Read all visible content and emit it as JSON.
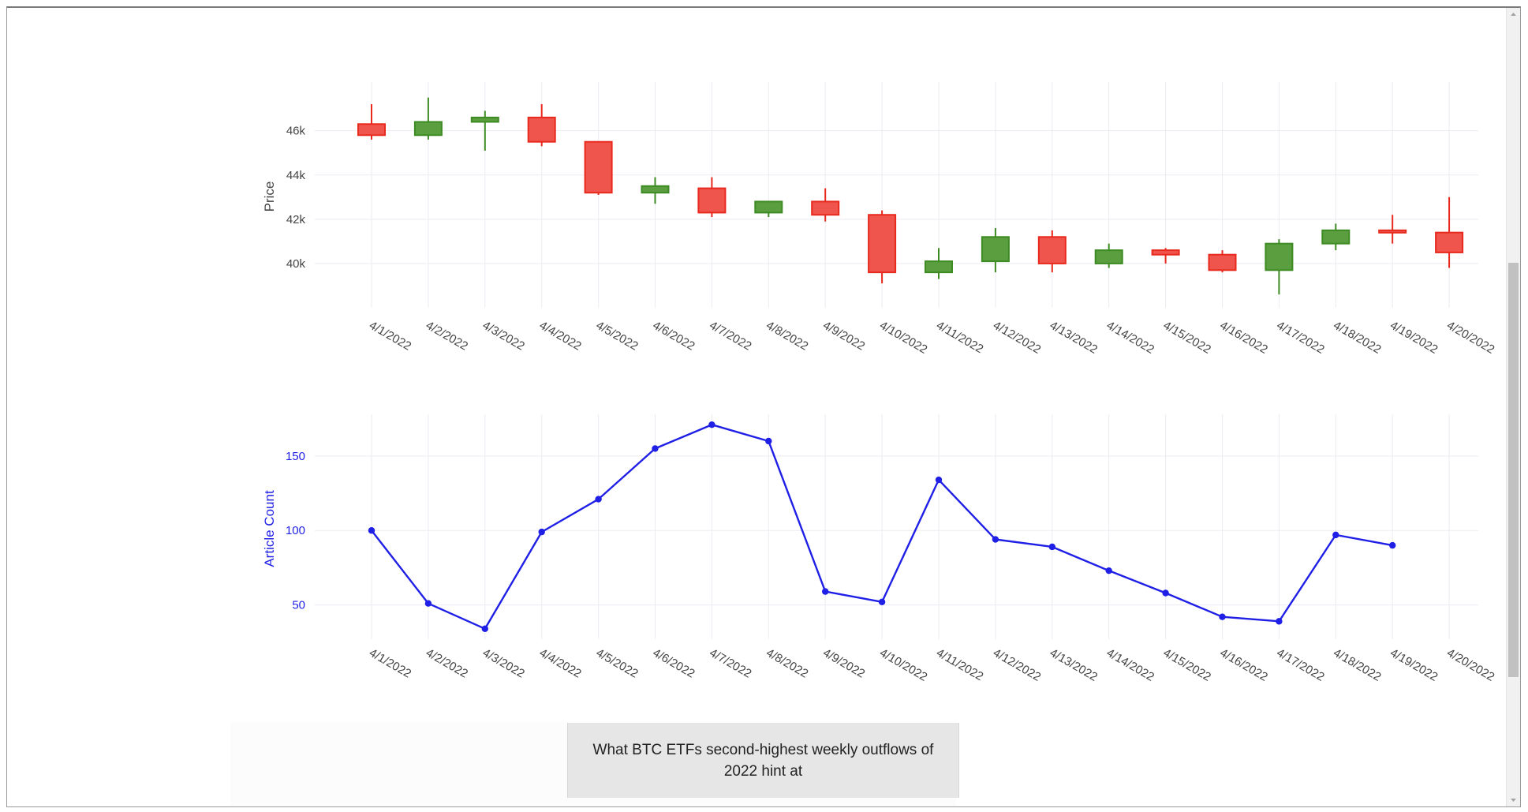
{
  "chart_data": [
    {
      "type": "candlestick",
      "ylabel": "Price",
      "ylim": [
        38000,
        48200
      ],
      "yticks": [
        {
          "v": 40000,
          "label": "40k"
        },
        {
          "v": 42000,
          "label": "42k"
        },
        {
          "v": 44000,
          "label": "44k"
        },
        {
          "v": 46000,
          "label": "46k"
        }
      ],
      "categories": [
        "4/1/2022",
        "4/2/2022",
        "4/3/2022",
        "4/4/2022",
        "4/5/2022",
        "4/6/2022",
        "4/7/2022",
        "4/8/2022",
        "4/9/2022",
        "4/10/2022",
        "4/11/2022",
        "4/12/2022",
        "4/13/2022",
        "4/14/2022",
        "4/15/2022",
        "4/16/2022",
        "4/17/2022",
        "4/18/2022",
        "4/19/2022",
        "4/20/2022"
      ],
      "open": [
        46300,
        45800,
        46400,
        46600,
        45500,
        43200,
        43400,
        42300,
        42800,
        42200,
        39600,
        40100,
        41200,
        40000,
        40600,
        40400,
        39700,
        40900,
        41500,
        41400
      ],
      "high": [
        47200,
        47500,
        46900,
        47200,
        45500,
        43900,
        43900,
        42800,
        43400,
        42400,
        40700,
        41600,
        41500,
        40900,
        40700,
        40600,
        41100,
        41800,
        42200,
        43000
      ],
      "low": [
        45600,
        45600,
        45100,
        45300,
        43100,
        42700,
        42100,
        42100,
        41900,
        39100,
        39300,
        39600,
        39600,
        39800,
        40000,
        39600,
        38600,
        40600,
        40900,
        39800
      ],
      "close": [
        45800,
        46400,
        46600,
        45500,
        43200,
        43500,
        42300,
        42800,
        42200,
        39600,
        40100,
        41200,
        40000,
        40600,
        40400,
        39700,
        40900,
        41500,
        41400,
        40500
      ],
      "colors": {
        "increasing": "#3d8b23",
        "increasing_fill": "#5a9e3f",
        "decreasing": "#e8291d",
        "decreasing_fill": "#f0554d"
      }
    },
    {
      "type": "line",
      "ylabel": "Article Count",
      "ylim": [
        27,
        178
      ],
      "yticks": [
        {
          "v": 50,
          "label": "50"
        },
        {
          "v": 100,
          "label": "100"
        },
        {
          "v": 150,
          "label": "150"
        }
      ],
      "categories": [
        "4/1/2022",
        "4/2/2022",
        "4/3/2022",
        "4/4/2022",
        "4/5/2022",
        "4/6/2022",
        "4/7/2022",
        "4/8/2022",
        "4/9/2022",
        "4/10/2022",
        "4/11/2022",
        "4/12/2022",
        "4/13/2022",
        "4/14/2022",
        "4/15/2022",
        "4/16/2022",
        "4/17/2022",
        "4/18/2022",
        "4/19/2022",
        "4/20/2022"
      ],
      "series": [
        {
          "values": [
            100,
            51,
            34,
            99,
            121,
            155,
            171,
            160,
            59,
            52,
            134,
            94,
            89,
            73,
            58,
            42,
            39,
            97,
            90,
            null
          ],
          "color": "#1f1fe6"
        }
      ]
    }
  ],
  "article": {
    "title": "What BTC ETFs second-highest weekly outflows of 2022 hint at"
  }
}
